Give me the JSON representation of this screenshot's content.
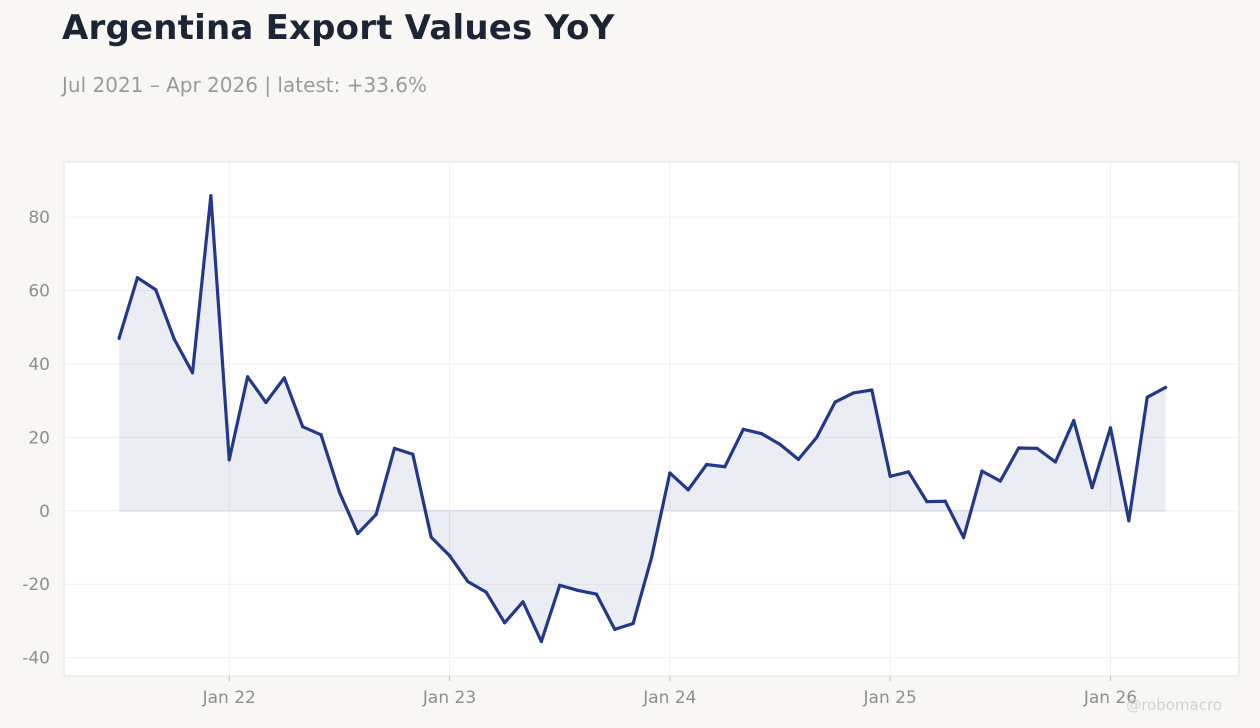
{
  "header": {
    "title": "Argentina Export Values YoY",
    "subtitle": "Jul 2021 – Apr 2026 | latest: +33.6%"
  },
  "watermark": "@robomacro",
  "colors": {
    "background": "#f8f7f4",
    "plot_background": "#ffffff",
    "line": "#22398a",
    "fill": "#22398a",
    "grid": "#efefef",
    "zero_line": "#d8dae8",
    "text_muted": "#8e8e8c",
    "title": "#1c2536"
  },
  "chart_data": {
    "type": "area",
    "title": "Argentina Export Values YoY",
    "subtitle": "Jul 2021 – Apr 2026 | latest: +33.6%",
    "xlabel": "",
    "ylabel": "",
    "ylim": [
      -45,
      95
    ],
    "xlim": [
      "2021-04",
      "2026-08"
    ],
    "y_ticks": [
      -40,
      -20,
      0,
      20,
      40,
      60,
      80
    ],
    "x_ticks": [
      {
        "date": "2022-01",
        "label": "Jan 22"
      },
      {
        "date": "2023-01",
        "label": "Jan 23"
      },
      {
        "date": "2024-01",
        "label": "Jan 24"
      },
      {
        "date": "2025-01",
        "label": "Jan 25"
      },
      {
        "date": "2026-01",
        "label": "Jan 26"
      }
    ],
    "grid": true,
    "legend": "none",
    "series": [
      {
        "x": [
          "2021-07",
          "2021-08",
          "2021-09",
          "2021-10",
          "2021-11",
          "2021-12",
          "2022-01",
          "2022-02",
          "2022-03",
          "2022-04",
          "2022-05",
          "2022-06",
          "2022-07",
          "2022-08",
          "2022-09",
          "2022-10",
          "2022-11",
          "2022-12",
          "2023-01",
          "2023-02",
          "2023-03",
          "2023-04",
          "2023-05",
          "2023-06",
          "2023-07",
          "2023-08",
          "2023-09",
          "2023-10",
          "2023-11",
          "2023-12",
          "2024-01",
          "2024-02",
          "2024-03",
          "2024-04",
          "2024-05",
          "2024-06",
          "2024-07",
          "2024-08",
          "2024-09",
          "2024-10",
          "2024-11",
          "2024-12",
          "2025-01",
          "2025-02",
          "2025-03",
          "2025-04",
          "2025-05",
          "2025-06",
          "2025-07",
          "2025-08",
          "2025-09",
          "2025-10",
          "2025-11",
          "2025-12",
          "2026-01",
          "2026-02",
          "2026-03",
          "2026-04"
        ],
        "values": [
          47,
          63.5,
          60.2,
          46.8,
          37.6,
          85.8,
          13.9,
          36.5,
          29.5,
          36.2,
          22.9,
          20.7,
          5.1,
          -6.2,
          -1.0,
          17.0,
          15.4,
          -7.2,
          -12.2,
          -19.3,
          -22.2,
          -30.5,
          -24.8,
          -35.6,
          -20.3,
          -21.7,
          -22.7,
          -32.3,
          -30.7,
          -12.8,
          10.3,
          5.7,
          12.6,
          12.0,
          22.2,
          21.0,
          18.1,
          14.0,
          20.0,
          29.6,
          32.1,
          32.9,
          9.4,
          10.6,
          2.5,
          2.6,
          -7.3,
          10.8,
          8.1,
          17.1,
          17.0,
          13.3,
          24.6,
          6.3,
          22.6,
          -2.7,
          30.9,
          33.6
        ]
      }
    ]
  }
}
